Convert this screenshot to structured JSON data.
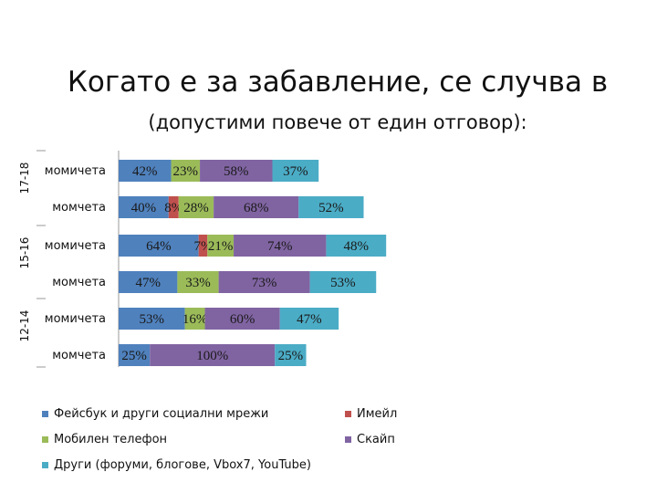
{
  "title": "Когато е за забавление, се случва в",
  "subtitle": "(допустими повече от един отговор):",
  "chart_data": {
    "type": "bar",
    "orientation": "horizontal",
    "stacked": true,
    "groups": [
      {
        "label": "17-18",
        "rows": [
          0,
          1
        ]
      },
      {
        "label": "15-16",
        "rows": [
          2,
          3
        ]
      },
      {
        "label": "12-14",
        "rows": [
          4,
          5
        ]
      }
    ],
    "categories": [
      "момичета",
      "момчета",
      "момичета",
      "момчета",
      "момичета",
      "момчета"
    ],
    "series": [
      {
        "name": "Фейсбук и други социални мрежи",
        "color": "#4f81bd",
        "values": [
          42,
          40,
          64,
          47,
          53,
          25
        ],
        "labels": [
          "42%",
          "40%",
          "64%",
          "47%",
          "53%",
          "25%"
        ]
      },
      {
        "name": "Имейл",
        "color": "#c0504d",
        "values": [
          0,
          8,
          7,
          0,
          0,
          0
        ],
        "labels": [
          "",
          "8%",
          "7%",
          "",
          "",
          ""
        ]
      },
      {
        "name": "Мобилен телефон",
        "color": "#9bbb59",
        "values": [
          23,
          28,
          21,
          33,
          16,
          0
        ],
        "labels": [
          "23%",
          "28%",
          "21%",
          "33%",
          "16%",
          ""
        ]
      },
      {
        "name": "Скайп",
        "color": "#8064a2",
        "values": [
          58,
          68,
          74,
          73,
          60,
          100
        ],
        "labels": [
          "58%",
          "68%",
          "74%",
          "73%",
          "60%",
          "100%"
        ]
      },
      {
        "name": "Други (форуми, блогове, Vbox7, YouTube)",
        "color": "#4bacc6",
        "values": [
          37,
          52,
          48,
          53,
          47,
          25
        ],
        "labels": [
          "37%",
          "52%",
          "48%",
          "53%",
          "47%",
          "25%"
        ]
      }
    ],
    "legend_position": "bottom"
  }
}
